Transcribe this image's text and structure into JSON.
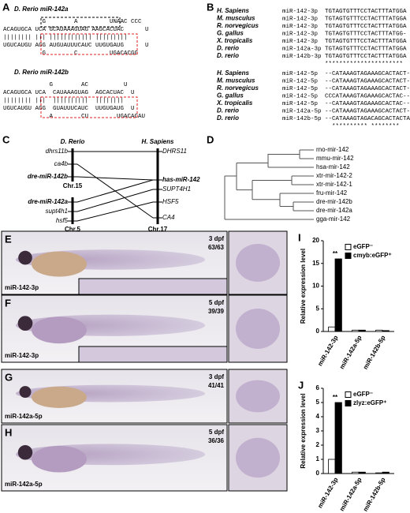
{
  "panelA": {
    "letter": "A",
    "blocks": [
      {
        "title": "D. Rerio miR-142a",
        "lines": [
          "           G        A         UNAAC CCC",
          "ACAGUGCA UCA GCAUAAAGUAG AAGCACUAC      U",
          "|||||||| ||| |||||||||||| |||||||||",
          "UGUCAUGU AGG AUGUAUUUCAUC UUGUGAUG      U",
          "           G        C         UGACACGG"
        ]
      },
      {
        "title": "D. Rerio miR-142b",
        "lines": [
          "             G        AC          U",
          "ACAGUGCA UCA  CAUAAAGUAG  AGCACUAC  U",
          "|||||||| |||  ||||||||||  ||||||||",
          "UGUCAUGU AGG  GUAUUUCAUC  UUGUGAUG  U",
          "             A        CU        UGACACAU"
        ]
      }
    ]
  },
  "panelB": {
    "letter": "B",
    "blocks": [
      {
        "rows": [
          [
            "H. Sapiens",
            "miR-142-3p",
            "TGTAGTGTTTCCTACTTTATGGA"
          ],
          [
            "M. musculus",
            "miR-142-3p",
            "TGTAGTGTTTCCTACTTTATGGA"
          ],
          [
            "R. norvegicus",
            "miR-142-3p",
            "TGTAGTGTTTCCTACTTTATGGA"
          ],
          [
            "G. gallus",
            "miR-142-3p",
            "TGTAGTGTTTCCTACTTTATGG-"
          ],
          [
            "X. tropicalis",
            "miR-142-3p",
            "TGTAGTGTTTCCTACTTTATGGA"
          ],
          [
            "D. rerio",
            "miR-142a-3p",
            "TGTAGTGTTTCCTACTTTATGGA"
          ],
          [
            "D. rerio",
            "miR-142b-3p",
            "TGTAGTGTTTCCTACTTTATGGA"
          ]
        ],
        "consensus": "**********************"
      },
      {
        "rows": [
          [
            "H. Sapiens",
            "miR-142-5p",
            "--CATAAAGTAGAAAGCACTACT-"
          ],
          [
            "M. musculus",
            "miR-142-5p",
            "--CATAAAGTAGAAAGCACTACT-"
          ],
          [
            "R. norvegicus",
            "miR-142-5p",
            "--CATAAAGTAGAAAGCACTACT-"
          ],
          [
            "G. gallus",
            "miR-142-5p",
            "CCCATAAAGTAGAAAGCACTAC--"
          ],
          [
            "X. tropicalis",
            "miR-142-5p",
            "--CATAAAGTAGAAAGCACTAC--"
          ],
          [
            "D. rerio",
            "miR-142a-5p",
            "--CATAAAGTAGAAAGCACTACT-"
          ],
          [
            "D. rerio",
            "miR-142b-5p",
            "--CATAAAGTAGACAGCACTACTA"
          ]
        ],
        "consensus": "  ********** ********"
      }
    ]
  },
  "panelC": {
    "letter": "C",
    "left_title": "D. Rerio",
    "right_title": "H. Sapiens",
    "left": [
      "dhrs11b",
      "ca4b",
      "dre-miR-142b",
      "Chr.15",
      "dre-miR-142a",
      "supt4h1",
      "hsf5",
      "Chr.5"
    ],
    "right": [
      "DHRS11",
      "has-miR-142",
      "SUPT4H1",
      "HSF5",
      "CA4",
      "Chr.17"
    ]
  },
  "panelD": {
    "letter": "D",
    "leaves": [
      "rno-mir-142",
      "mmu-mir-142",
      "hsa-mir-142",
      "xtr-mir-142-2",
      "xtr-mir-142-1",
      "fru-mir-142",
      "dre-mir-142b",
      "dre-mir-142a",
      "gga-mir-142"
    ]
  },
  "images": [
    {
      "letter": "E",
      "stage": "3 dpf",
      "ratio": "63/63",
      "probe": "miR-142-3p"
    },
    {
      "letter": "F",
      "stage": "5 dpf",
      "ratio": "39/39",
      "probe": "miR-142-3p"
    },
    {
      "letter": "G",
      "stage": "3 dpf",
      "ratio": "41/41",
      "probe": "miR-142a-5p"
    },
    {
      "letter": "H",
      "stage": "5 dpf",
      "ratio": "36/36",
      "probe": "miR-142a-5p"
    }
  ],
  "chart_data": [
    {
      "type": "bar",
      "letter": "I",
      "ylabel": "Relative expression level",
      "categories": [
        "miR-142-3p",
        "miR-142a-5p",
        "miR-142b-5p"
      ],
      "series": [
        {
          "name": "eGFP⁻",
          "color": "#ffffff",
          "values": [
            1,
            0.3,
            0.3
          ]
        },
        {
          "name": "cmyb:eGFP⁺",
          "color": "#000000",
          "values": [
            16,
            0.3,
            0.2
          ]
        }
      ],
      "ylim": [
        0,
        20
      ],
      "yticks": [
        0,
        5,
        10,
        15,
        20
      ],
      "annotation": "**"
    },
    {
      "type": "bar",
      "letter": "J",
      "ylabel": "Relative expression level",
      "categories": [
        "miR-142-3p",
        "miR-142a-5p",
        "miR-142b-5p"
      ],
      "series": [
        {
          "name": "eGFP⁻",
          "color": "#ffffff",
          "values": [
            1,
            0.1,
            0.05
          ]
        },
        {
          "name": "zlyz:eGFP⁺",
          "color": "#000000",
          "values": [
            5,
            0.1,
            0.1
          ]
        }
      ],
      "ylim": [
        0,
        6
      ],
      "yticks": [
        0,
        1,
        2,
        3,
        4,
        5,
        6
      ],
      "annotation": "**"
    }
  ]
}
